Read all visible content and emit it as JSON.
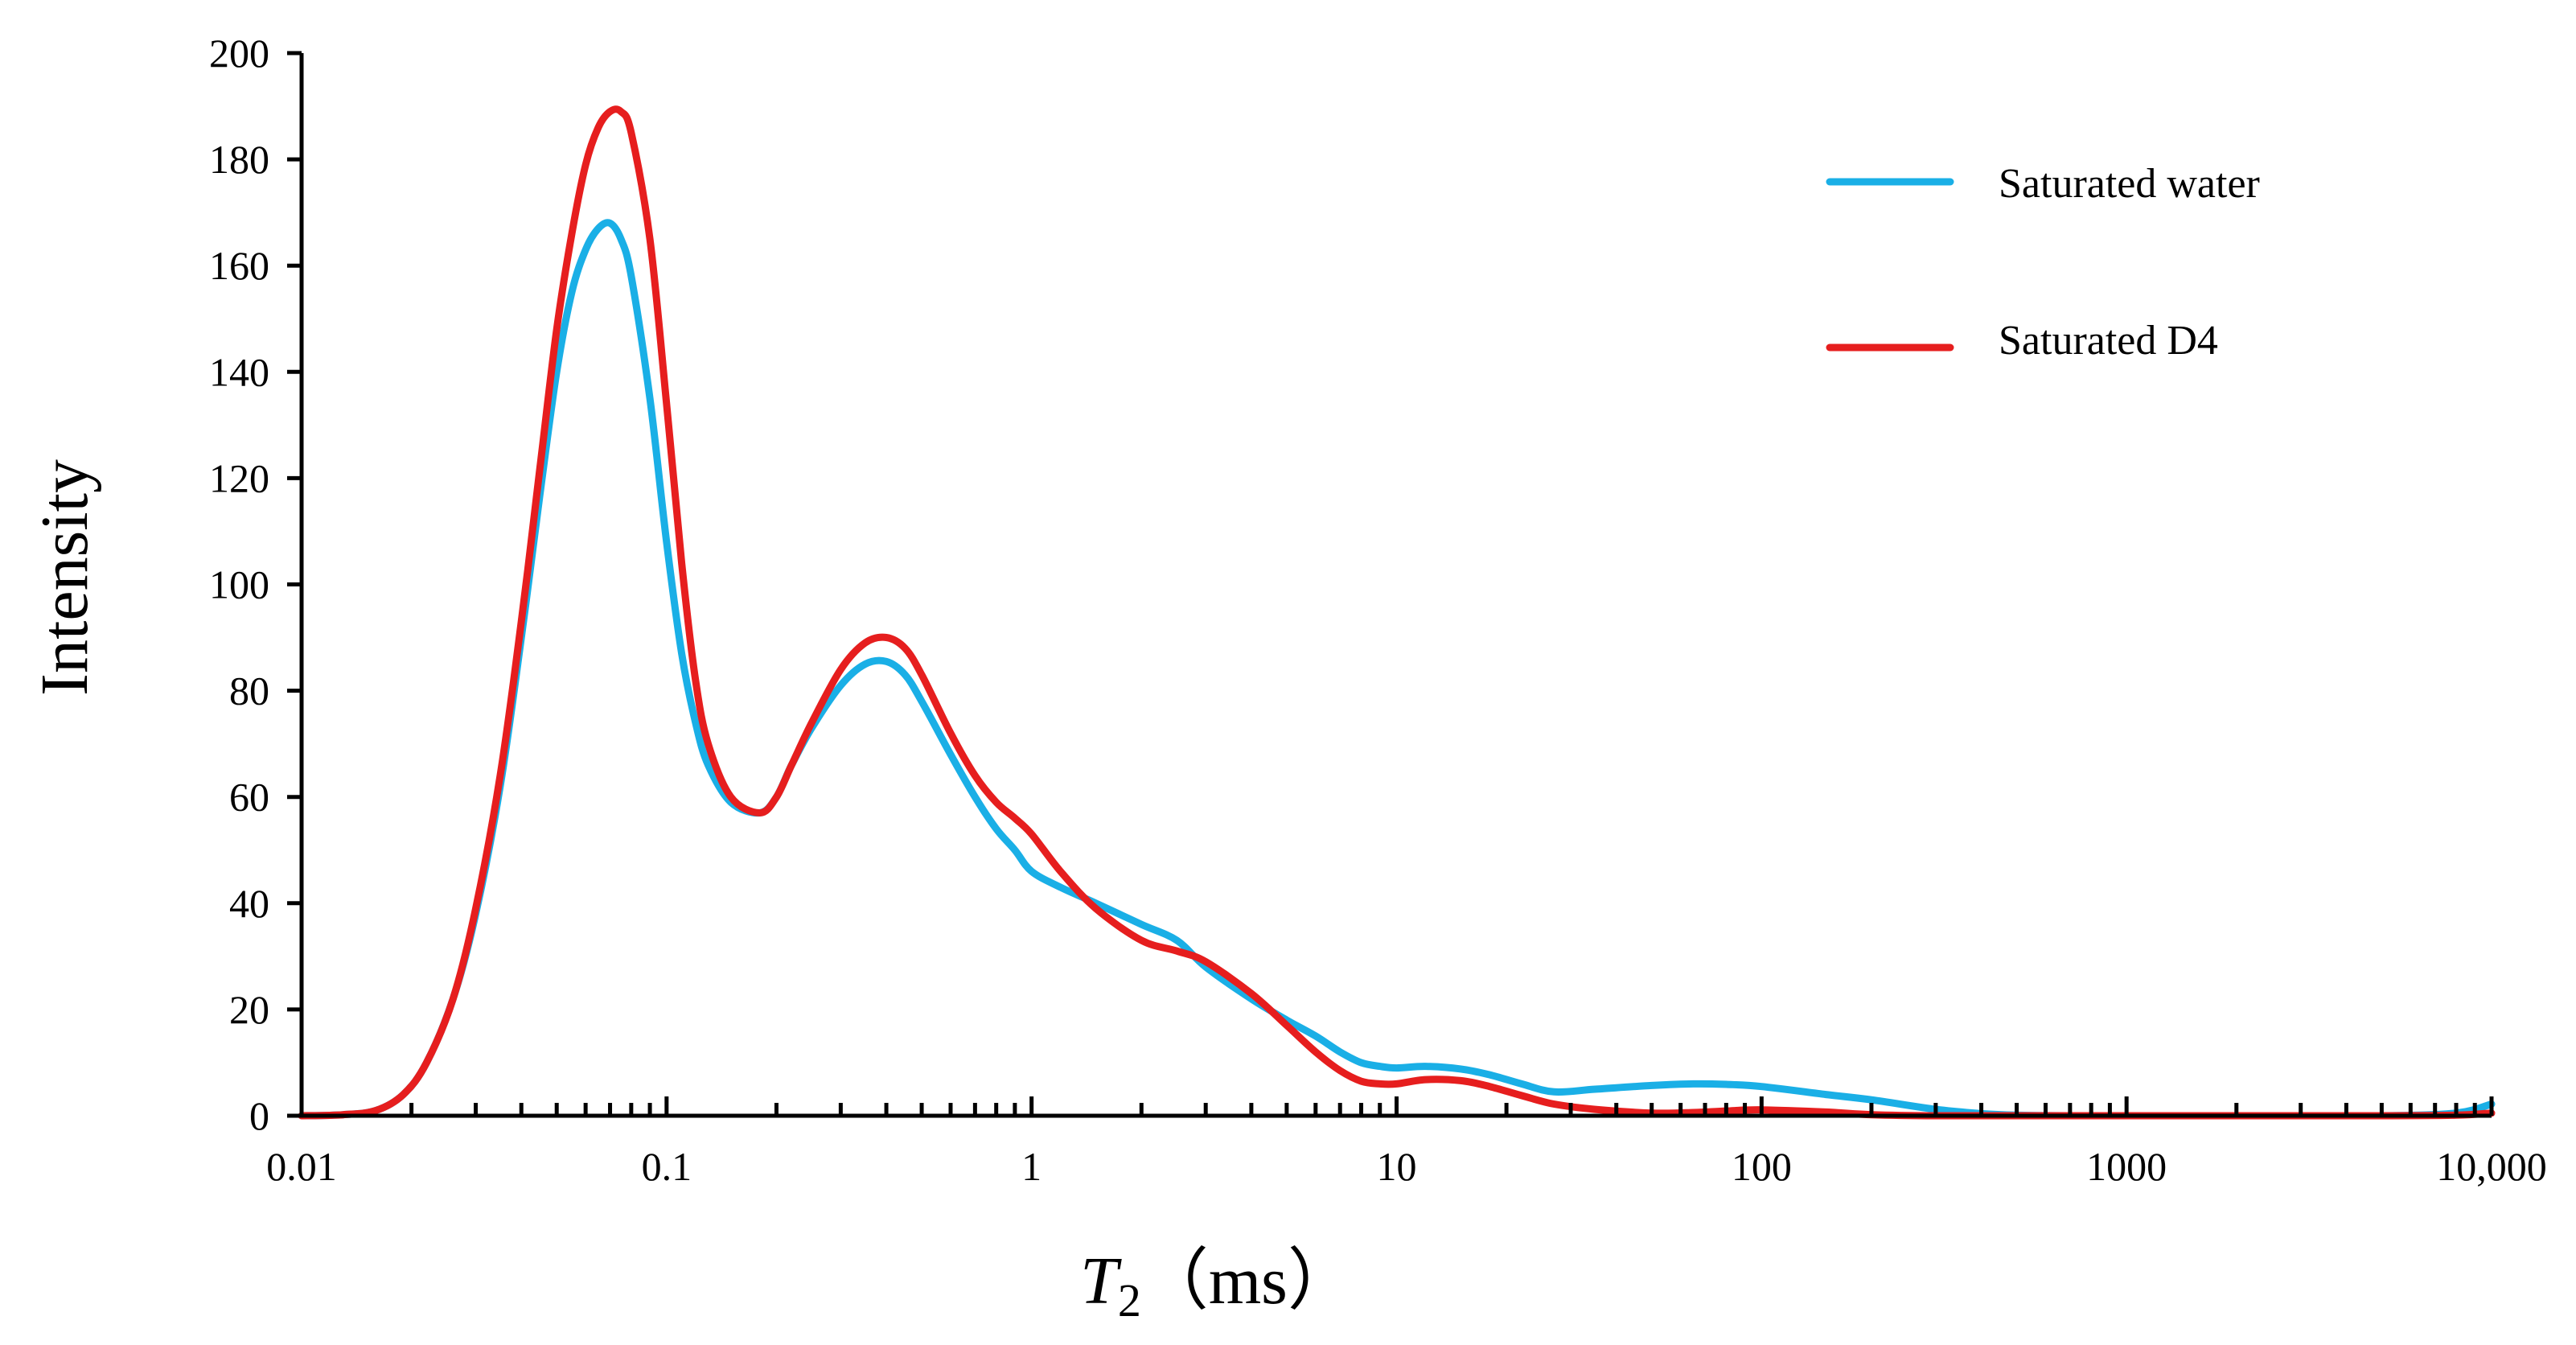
{
  "chart_data": {
    "type": "line",
    "title": "",
    "xlabel": "T2（ms）",
    "xlabel_parts": {
      "symbol": "T",
      "subscript": "2",
      "unit": "（ms）"
    },
    "ylabel": "Intensity",
    "xscale": "log",
    "xlim": [
      0.01,
      10000
    ],
    "ylim": [
      0,
      200
    ],
    "x_ticks": [
      0.01,
      0.1,
      1,
      10,
      100,
      1000,
      10000
    ],
    "x_tick_labels": [
      "0.01",
      "0.1",
      "1",
      "10",
      "100",
      "1000",
      "10,000"
    ],
    "y_ticks": [
      0,
      20,
      40,
      60,
      80,
      100,
      120,
      140,
      160,
      180,
      200
    ],
    "y_tick_labels": [
      "0",
      "20",
      "40",
      "60",
      "80",
      "100",
      "120",
      "140",
      "160",
      "180",
      "200"
    ],
    "grid": false,
    "legend_position": "top-right",
    "series": [
      {
        "name": "Saturated water",
        "color": "#1AAFE6",
        "x": [
          0.01,
          0.013,
          0.016,
          0.019,
          0.022,
          0.026,
          0.03,
          0.035,
          0.04,
          0.045,
          0.05,
          0.055,
          0.06,
          0.065,
          0.07,
          0.075,
          0.08,
          0.09,
          0.1,
          0.11,
          0.12,
          0.13,
          0.15,
          0.18,
          0.2,
          0.22,
          0.25,
          0.3,
          0.35,
          0.4,
          0.45,
          0.5,
          0.6,
          0.7,
          0.8,
          0.9,
          1.0,
          1.2,
          1.5,
          2.0,
          2.5,
          3.0,
          4.0,
          5.0,
          6.0,
          7.0,
          8.0,
          9.0,
          10,
          12,
          15,
          18,
          22,
          27,
          35,
          50,
          65,
          80,
          100,
          150,
          200,
          300,
          400,
          500,
          700,
          1000,
          2000,
          5000,
          8000,
          10000
        ],
        "y": [
          0,
          0.2,
          1,
          4,
          10,
          22,
          38,
          62,
          90,
          117,
          140,
          155,
          163,
          167,
          168,
          165,
          158,
          135,
          108,
          87,
          74,
          66,
          59,
          57,
          60,
          66,
          73,
          81,
          85,
          85.5,
          83,
          78,
          68,
          60,
          54,
          50,
          46,
          43,
          40,
          36,
          33,
          28,
          22,
          18,
          15,
          12,
          10,
          9.3,
          9,
          9.3,
          8.8,
          7.7,
          6,
          4.5,
          5,
          5.7,
          6,
          5.9,
          5.5,
          4,
          3,
          1.2,
          0.4,
          0.1,
          0,
          0,
          0,
          0,
          0.5,
          2.2
        ]
      },
      {
        "name": "Saturated D4",
        "color": "#E61E1E",
        "x": [
          0.01,
          0.013,
          0.016,
          0.019,
          0.022,
          0.026,
          0.03,
          0.035,
          0.04,
          0.045,
          0.05,
          0.055,
          0.06,
          0.065,
          0.07,
          0.075,
          0.08,
          0.09,
          0.1,
          0.11,
          0.12,
          0.13,
          0.15,
          0.18,
          0.2,
          0.22,
          0.25,
          0.3,
          0.35,
          0.4,
          0.45,
          0.5,
          0.6,
          0.7,
          0.8,
          0.9,
          1.0,
          1.2,
          1.5,
          2.0,
          2.5,
          3.0,
          4.0,
          5.0,
          6.0,
          7.0,
          8.0,
          9.0,
          10,
          12,
          15,
          18,
          22,
          27,
          35,
          50,
          65,
          80,
          100,
          150,
          200,
          300,
          500,
          1000,
          2000,
          5000,
          8000,
          10000
        ],
        "y": [
          0,
          0.2,
          1,
          4,
          10,
          22,
          39,
          64,
          93,
          122,
          148,
          166,
          179,
          186,
          189,
          189,
          185,
          165,
          134,
          104,
          82,
          70,
          60,
          57,
          60,
          66,
          74,
          84,
          89,
          90,
          88,
          83,
          72,
          64,
          59,
          56,
          53,
          46,
          39,
          33,
          31,
          29,
          23,
          17,
          12,
          8.5,
          6.5,
          6,
          6,
          6.8,
          6.6,
          5.5,
          3.8,
          2.2,
          1.2,
          0.5,
          0.6,
          0.9,
          1.1,
          0.7,
          0.2,
          0,
          0,
          0,
          0,
          0,
          0.1,
          0.5
        ]
      }
    ]
  }
}
